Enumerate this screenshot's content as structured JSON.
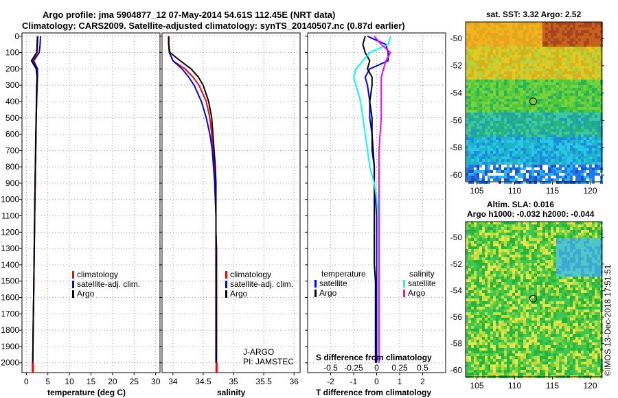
{
  "header": {
    "line1": "Argo profile: jma 5904877_12 07-May-2014 54.61S 112.45E (NRT data)",
    "line2": "Climatology: CARS2009. Satellite-adjusted climatology: synTS_20140507.nc (0.87d earlier)"
  },
  "colors": {
    "climatology": "#ff0000",
    "satellite": "#0000ff",
    "argo": "#000000",
    "satellite_salinity": "#00ffff",
    "argo_salinity": "#ff00ff"
  },
  "chart_data": [
    {
      "type": "line",
      "name": "temperature",
      "xlabel": "temperature (deg C)",
      "xlim": [
        -1,
        31
      ],
      "xticks": [
        0,
        5,
        10,
        15,
        20,
        25,
        30
      ],
      "ylim": [
        2060,
        -20
      ],
      "yticks": [
        0,
        100,
        200,
        300,
        400,
        500,
        600,
        700,
        800,
        900,
        1000,
        1100,
        1200,
        1300,
        1400,
        1500,
        1600,
        1700,
        1800,
        1900,
        2000
      ],
      "grid": true,
      "legend": [
        "climatology",
        "satellite-adj. clim.",
        "Argo"
      ],
      "series": [
        {
          "name": "climatology",
          "color": "#ff0000",
          "x": [
            2.7,
            2.6,
            2.5,
            1.5,
            2.5,
            2.6,
            2.5,
            2.4,
            2.3,
            2.25,
            2.2,
            2.1,
            2.05,
            2.0,
            1.95,
            1.9,
            1.85,
            1.8,
            1.75,
            1.7,
            1.65,
            1.6,
            1.55,
            1.5
          ],
          "y": [
            0,
            50,
            100,
            150,
            200,
            250,
            300,
            400,
            500,
            600,
            700,
            800,
            900,
            1000,
            1100,
            1200,
            1300,
            1400,
            1500,
            1600,
            1700,
            1800,
            1900,
            2000
          ]
        },
        {
          "name": "satellite-adj. clim.",
          "color": "#0000ff",
          "x": [
            3.3,
            3.2,
            3.0,
            1.7,
            2.6,
            2.6,
            2.5,
            2.4,
            2.3,
            2.25,
            2.2,
            2.1,
            2.05,
            2.0,
            1.95,
            1.9,
            1.85,
            1.8,
            1.75,
            1.7,
            1.65,
            1.6,
            1.55,
            1.5
          ],
          "y": [
            0,
            50,
            100,
            150,
            200,
            250,
            300,
            400,
            500,
            600,
            700,
            800,
            900,
            1000,
            1100,
            1200,
            1300,
            1400,
            1500,
            1600,
            1700,
            1800,
            1900,
            2000
          ]
        },
        {
          "name": "Argo",
          "color": "#000000",
          "x": [
            2.6,
            2.5,
            2.4,
            1.2,
            2.3,
            2.5,
            2.4,
            2.35,
            2.3,
            2.2,
            2.15,
            2.1,
            2.05,
            2.0,
            1.95,
            1.9,
            1.85,
            1.8,
            1.75,
            1.7,
            1.65,
            1.6,
            1.55,
            1.5
          ],
          "y": [
            0,
            50,
            100,
            150,
            200,
            250,
            300,
            400,
            500,
            600,
            700,
            800,
            900,
            1000,
            1100,
            1200,
            1300,
            1400,
            1500,
            1600,
            1700,
            1800,
            1900,
            2000
          ]
        }
      ]
    },
    {
      "type": "line",
      "name": "salinity",
      "xlabel": "salinity",
      "xlim": [
        33.82,
        36.1
      ],
      "xticks": [
        34,
        34.5,
        35,
        35.5,
        36
      ],
      "ylim": [
        2060,
        -20
      ],
      "yticks": [
        0,
        100,
        200,
        300,
        400,
        500,
        600,
        700,
        800,
        900,
        1000,
        1100,
        1200,
        1300,
        1400,
        1500,
        1600,
        1700,
        1800,
        1900,
        2000
      ],
      "grid": true,
      "legend": [
        "climatology",
        "satellite-adj. clim.",
        "Argo"
      ],
      "annotations": [
        "J-ARGO",
        "PI: JAMSTEC"
      ],
      "series": [
        {
          "name": "climatology",
          "color": "#ff0000",
          "x": [
            33.93,
            33.93,
            33.94,
            34.0,
            34.2,
            34.33,
            34.43,
            34.55,
            34.61,
            34.64,
            34.66,
            34.68,
            34.69,
            34.7,
            34.71,
            34.71,
            34.72,
            34.72,
            34.72,
            34.72,
            34.72,
            34.72,
            34.72,
            34.72
          ],
          "y": [
            0,
            50,
            100,
            150,
            200,
            250,
            300,
            400,
            500,
            600,
            700,
            800,
            900,
            1000,
            1100,
            1200,
            1300,
            1400,
            1500,
            1600,
            1700,
            1800,
            1900,
            2000
          ]
        },
        {
          "name": "satellite-adj. clim.",
          "color": "#0000ff",
          "x": [
            33.93,
            33.93,
            33.94,
            34.0,
            34.15,
            34.26,
            34.35,
            34.47,
            34.55,
            34.61,
            34.65,
            34.67,
            34.69,
            34.7,
            34.71,
            34.71,
            34.72,
            34.72,
            34.72,
            34.72,
            34.72,
            34.72,
            34.72,
            34.72
          ],
          "y": [
            0,
            50,
            100,
            150,
            200,
            250,
            300,
            400,
            500,
            600,
            700,
            800,
            900,
            1000,
            1100,
            1200,
            1300,
            1400,
            1500,
            1600,
            1700,
            1800,
            1900,
            2000
          ]
        },
        {
          "name": "Argo",
          "color": "#000000",
          "x": [
            33.93,
            33.93,
            33.95,
            34.12,
            34.3,
            34.42,
            34.5,
            34.59,
            34.64,
            34.66,
            34.68,
            34.7,
            34.71,
            34.71,
            34.71,
            34.71,
            34.71,
            34.71,
            34.71,
            34.71,
            34.71,
            34.71,
            34.71,
            34.71
          ],
          "y": [
            0,
            50,
            100,
            150,
            200,
            250,
            300,
            400,
            500,
            600,
            700,
            800,
            900,
            1000,
            1100,
            1200,
            1300,
            1400,
            1500,
            1600,
            1700,
            1800,
            1900,
            2000
          ]
        }
      ]
    },
    {
      "type": "line",
      "name": "difference",
      "xlabel": "T difference from climatology",
      "xlabel_top": "S difference from climatology",
      "xlim": [
        -3.0,
        3.0
      ],
      "xticks": [
        -2,
        -1,
        0,
        1,
        2
      ],
      "s_xticks": [
        -0.5,
        -0.25,
        0,
        0.25,
        0.5
      ],
      "s_tick_labels": [
        "-0.5",
        "-0.25",
        "0",
        "0.25",
        "0.5"
      ],
      "ylim": [
        2060,
        -20
      ],
      "yticks": [
        0,
        100,
        200,
        300,
        400,
        500,
        600,
        700,
        800,
        900,
        1000,
        1100,
        1200,
        1300,
        1400,
        1500,
        1600,
        1700,
        1800,
        1900,
        2000
      ],
      "grid": true,
      "legend_left_title": "temperature",
      "legend_right_title": "salinity",
      "legend_left": [
        "satellite",
        "Argo"
      ],
      "legend_right": [
        "satellite",
        "Argo"
      ],
      "series": [
        {
          "name": "T satellite",
          "color": "#0000ff",
          "x": [
            -0.4,
            0.4,
            0.5,
            0.5,
            -0.3,
            -0.5,
            -0.4,
            -0.3,
            -0.3,
            -0.2,
            -0.2,
            -0.1,
            -0.1,
            -0.05,
            0,
            0,
            0,
            0,
            0,
            0,
            0,
            0,
            0,
            0
          ],
          "y": [
            0,
            50,
            100,
            150,
            200,
            250,
            300,
            400,
            500,
            600,
            700,
            800,
            900,
            1000,
            1100,
            1200,
            1300,
            1400,
            1500,
            1600,
            1700,
            1800,
            1900,
            2000
          ]
        },
        {
          "name": "T Argo",
          "color": "#000000",
          "x": [
            -0.5,
            -0.6,
            -0.5,
            -0.3,
            -0.4,
            -0.2,
            -0.2,
            -0.3,
            -0.2,
            -0.2,
            -0.15,
            -0.1,
            -0.1,
            -0.1,
            -0.1,
            -0.1,
            -0.1,
            -0.1,
            -0.05,
            -0.05,
            -0.05,
            -0.05,
            -0.05,
            -0.05
          ],
          "y": [
            0,
            50,
            100,
            150,
            200,
            250,
            300,
            400,
            500,
            600,
            700,
            800,
            900,
            1000,
            1100,
            1200,
            1300,
            1400,
            1500,
            1600,
            1700,
            1800,
            1900,
            2000
          ]
        },
        {
          "name": "S satellite",
          "color": "#00ffff",
          "x": [
            0.6,
            0.5,
            -0.3,
            -0.6,
            -0.9,
            -1.0,
            -0.9,
            -0.7,
            -0.6,
            -0.5,
            -0.4,
            -0.3,
            -0.1,
            0,
            0.1,
            0.1,
            0.1,
            0.1,
            0.1,
            0.1,
            0.1,
            0.1,
            0.1,
            0.1
          ],
          "y": [
            0,
            50,
            100,
            150,
            200,
            250,
            300,
            400,
            500,
            600,
            700,
            800,
            900,
            1000,
            1100,
            1200,
            1300,
            1400,
            1500,
            1600,
            1700,
            1800,
            1900,
            2000
          ]
        },
        {
          "name": "S Argo",
          "color": "#ff00ff",
          "x": [
            -0.1,
            0.2,
            0.6,
            0.4,
            0.3,
            0.2,
            0.2,
            0.2,
            0.2,
            0.15,
            0.1,
            0.1,
            0.1,
            0.1,
            0.1,
            0.1,
            0.1,
            0.1,
            0.1,
            0.1,
            0.1,
            0.1,
            0.1,
            0.1
          ],
          "y": [
            0,
            50,
            100,
            150,
            200,
            250,
            300,
            400,
            500,
            600,
            700,
            800,
            900,
            1000,
            1100,
            1200,
            1300,
            1400,
            1500,
            1600,
            1700,
            1800,
            1900,
            2000
          ]
        }
      ]
    },
    {
      "type": "heatmap",
      "name": "sst_map",
      "title": "sat. SST: 3.32 Argo: 2.52",
      "xlim": [
        103.5,
        121.5
      ],
      "ylim": [
        -60.5,
        -48.8
      ],
      "xticks": [
        105,
        110,
        115,
        120
      ],
      "yticks": [
        -50,
        -52,
        -54,
        -56,
        -58,
        -60
      ],
      "ytick_labels": [
        "-50",
        "-52",
        "-54",
        "-56",
        "-58",
        "-60"
      ],
      "marker": {
        "lon": 112.45,
        "lat": -54.61
      }
    },
    {
      "type": "heatmap",
      "name": "sla_map",
      "title_line1": "Altim. SLA: 0.016",
      "title_line2": "Argo h1000: -0.032 h2000: -0.044",
      "xlim": [
        103.5,
        121.5
      ],
      "ylim": [
        -60.5,
        -48.8
      ],
      "xticks": [
        105,
        110,
        115,
        120
      ],
      "yticks": [
        -50,
        -52,
        -54,
        -56,
        -58,
        -60
      ],
      "ytick_labels": [
        "-50",
        "-52",
        "-54",
        "-56",
        "-58",
        "-60"
      ],
      "marker": {
        "lon": 112.45,
        "lat": -54.61
      }
    }
  ],
  "credit": "©IMOS 13-Dec-2018 17:51:51"
}
